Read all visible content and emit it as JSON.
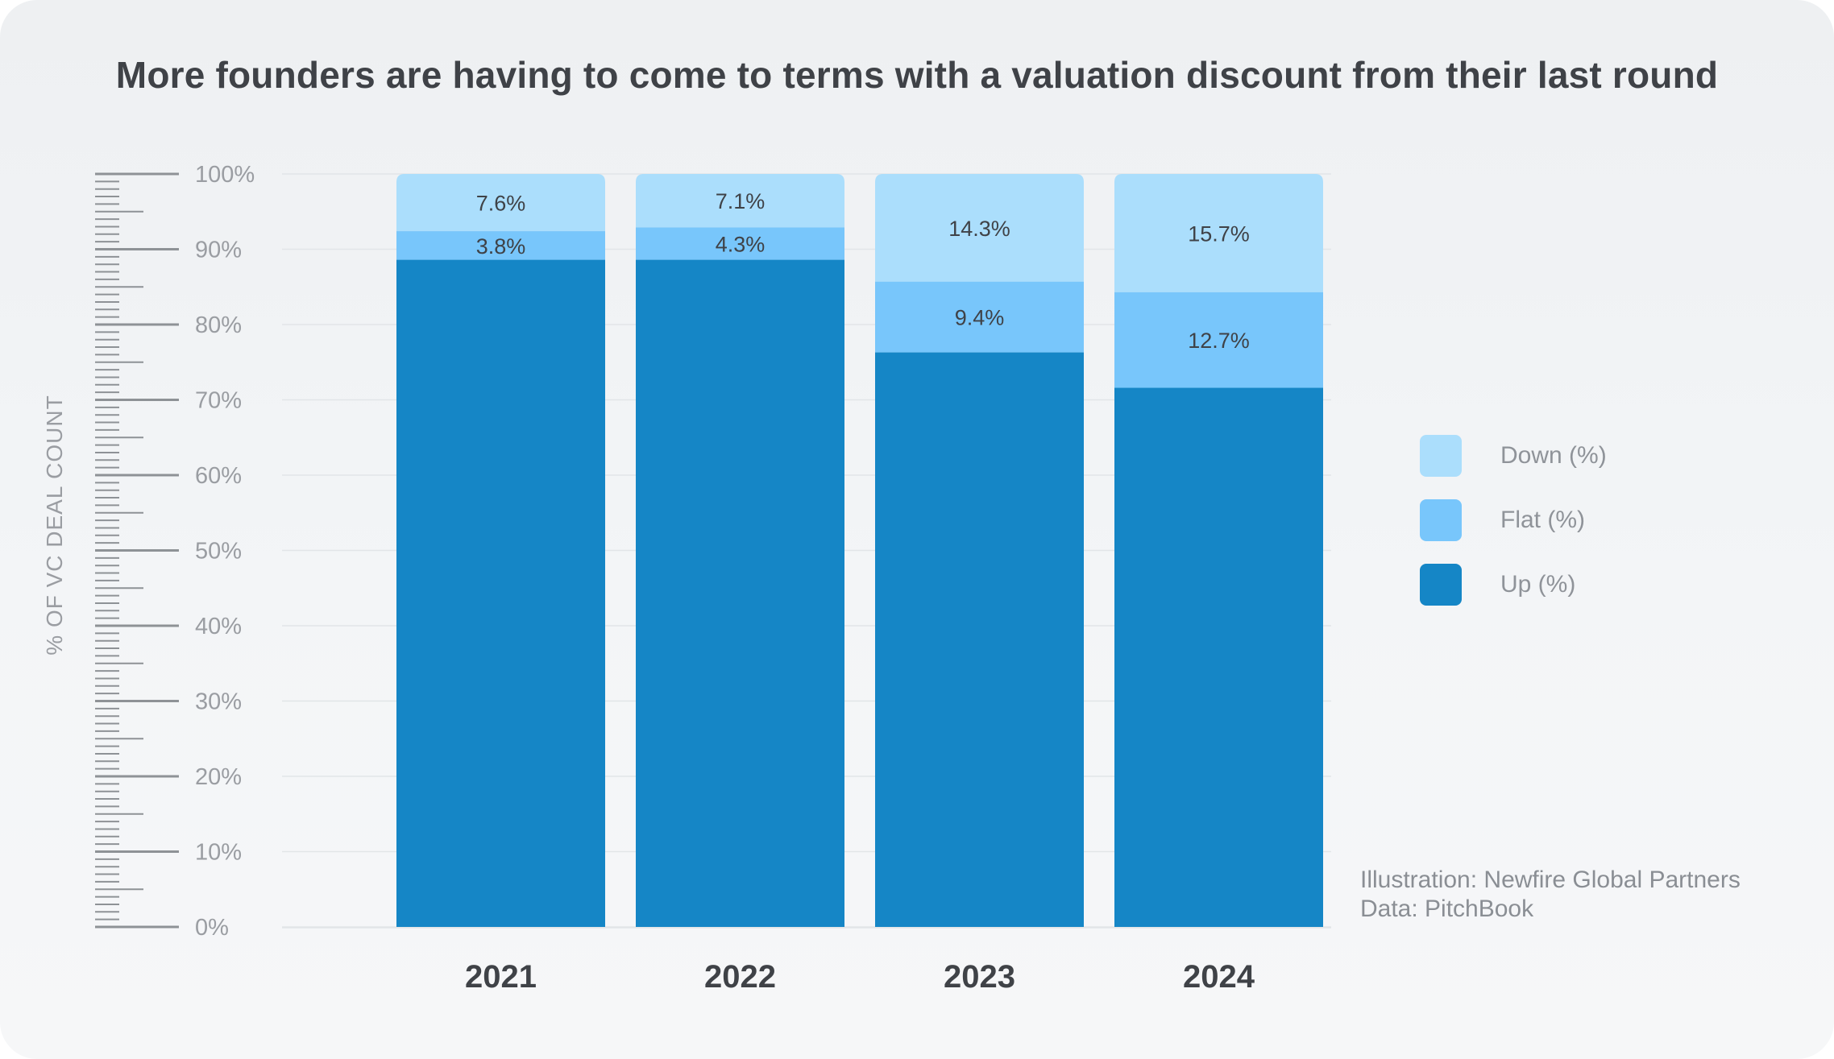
{
  "title": "More founders are having to come to terms with a valuation discount from their last round",
  "credits": {
    "illustration": "Illustration: Newfire Global Partners",
    "data": "Data: PitchBook"
  },
  "colors": {
    "up": "#1586c6",
    "flat": "#78c6fb",
    "down": "#abdefc",
    "axis_text": "#9a9da2",
    "bar_label": "#3f4247"
  },
  "chart_data": {
    "type": "bar",
    "stacked": true,
    "title": "More founders are having to come to terms with a valuation discount from their last round",
    "xlabel": "",
    "ylabel": "% OF VC DEAL COUNT",
    "ylim": [
      0,
      100
    ],
    "yticks": [
      "0%",
      "10%",
      "20%",
      "30%",
      "40%",
      "50%",
      "60%",
      "70%",
      "80%",
      "90%",
      "100%"
    ],
    "categories": [
      "2021",
      "2022",
      "2023",
      "2024"
    ],
    "series": [
      {
        "name": "Up (%)",
        "values": [
          88.6,
          88.6,
          76.3,
          71.6
        ]
      },
      {
        "name": "Flat (%)",
        "values": [
          3.8,
          4.3,
          9.4,
          12.7
        ],
        "labels": [
          "3.8%",
          "4.3%",
          "9.4%",
          "12.7%"
        ]
      },
      {
        "name": "Down (%)",
        "values": [
          7.6,
          7.1,
          14.3,
          15.7
        ],
        "labels": [
          "7.6%",
          "7.1%",
          "14.3%",
          "15.7%"
        ]
      }
    ],
    "legend": [
      "Down (%)",
      "Flat (%)",
      "Up (%)"
    ],
    "legend_position": "right",
    "grid": true
  }
}
